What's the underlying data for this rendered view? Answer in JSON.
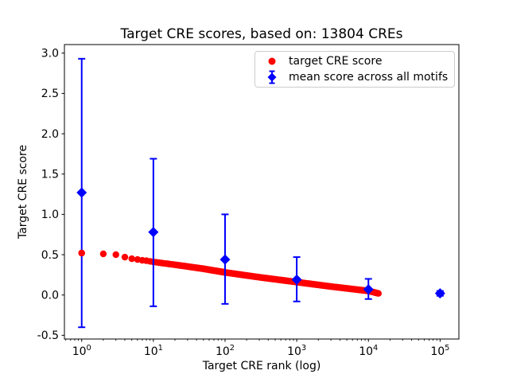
{
  "chart_data": {
    "type": "scatter",
    "title": "Target CRE scores, based on: 13804 CREs",
    "xlabel": "Target CRE rank (log)",
    "ylabel": "Target CRE score",
    "xscale": "log",
    "grid": false,
    "legend_position": "upper right",
    "xlim": [
      0.574,
      183000
    ],
    "ylim": [
      -0.546,
      3.106
    ],
    "ytick_labels": [
      "-0.5",
      "0.0",
      "0.5",
      "1.0",
      "1.5",
      "2.0",
      "2.5",
      "3.0"
    ],
    "ytick_values": [
      -0.5,
      0.0,
      0.5,
      1.0,
      1.5,
      2.0,
      2.5,
      3.0
    ],
    "xtick_base": "10",
    "xtick_exponents": [
      0,
      1,
      2,
      3,
      4,
      5
    ],
    "series": [
      {
        "name": "target CRE score",
        "type": "dense-scatter",
        "color": "#ff0000",
        "marker": "circle",
        "n_points": 13804,
        "x_range": [
          1,
          13804
        ],
        "anchors": [
          [
            1,
            0.52
          ],
          [
            2,
            0.51
          ],
          [
            3,
            0.5
          ],
          [
            4,
            0.47
          ],
          [
            5,
            0.45
          ],
          [
            6,
            0.44
          ],
          [
            7,
            0.43
          ],
          [
            8,
            0.425
          ],
          [
            10,
            0.41
          ],
          [
            20,
            0.375
          ],
          [
            50,
            0.325
          ],
          [
            100,
            0.28
          ],
          [
            300,
            0.22
          ],
          [
            1000,
            0.16
          ],
          [
            3000,
            0.105
          ],
          [
            10000,
            0.05
          ],
          [
            13804,
            0.02
          ]
        ]
      },
      {
        "name": "mean score across all motifs",
        "type": "errorbar",
        "color": "#0000ff",
        "marker": "diamond",
        "points": [
          {
            "x": 1,
            "y": 1.27,
            "ylo": -0.4,
            "yhi": 2.93
          },
          {
            "x": 10,
            "y": 0.78,
            "ylo": -0.14,
            "yhi": 1.69
          },
          {
            "x": 100,
            "y": 0.44,
            "ylo": -0.11,
            "yhi": 1.0
          },
          {
            "x": 1000,
            "y": 0.19,
            "ylo": -0.08,
            "yhi": 0.47
          },
          {
            "x": 10000,
            "y": 0.07,
            "ylo": -0.05,
            "yhi": 0.2
          },
          {
            "x": 100000,
            "y": 0.02,
            "ylo": -0.01,
            "yhi": 0.05
          }
        ]
      }
    ]
  }
}
